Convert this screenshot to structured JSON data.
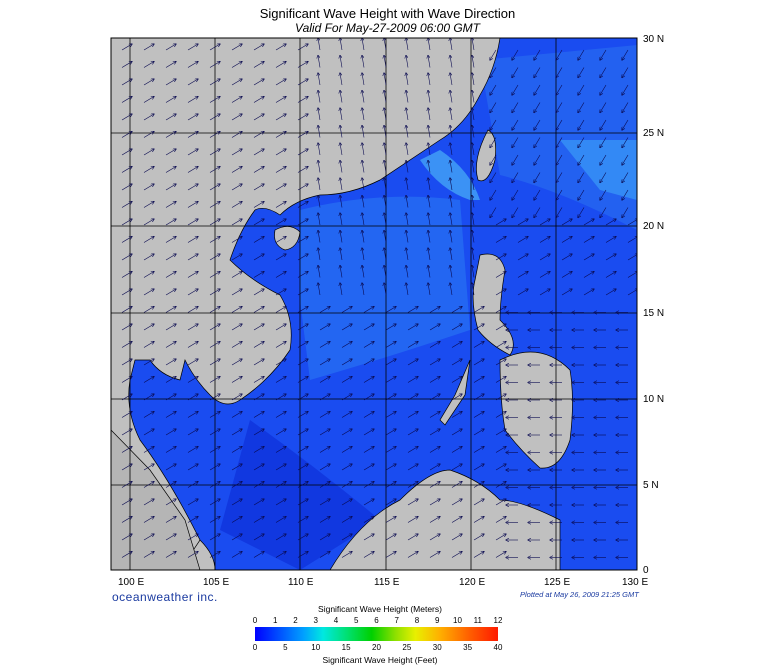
{
  "title": "Significant Wave Height with Wave Direction",
  "subtitle": "Valid For May-27-2009 06:00 GMT",
  "brand": "oceanweather inc.",
  "plotted": "Plotted at May 26, 2009 21:25 GMT",
  "map": {
    "lon_range": [
      99,
      130
    ],
    "lat_range": [
      0,
      30
    ],
    "lon_labels": [
      "100 E",
      "105 E",
      "110 E",
      "115 E",
      "120 E",
      "125 E",
      "130 E"
    ],
    "lat_labels": [
      "0",
      "5 N",
      "10 N",
      "15 N",
      "20 N",
      "25 N",
      "30 N"
    ],
    "land_color": "#c0c0c0",
    "ocean_color": "#1a4cf0"
  },
  "legend": {
    "meters_title": "Significant Wave Height (Meters)",
    "feet_title": "Significant Wave Height (Feet)",
    "meters_ticks": [
      "0",
      "1",
      "2",
      "3",
      "4",
      "5",
      "6",
      "7",
      "8",
      "9",
      "10",
      "11",
      "12"
    ],
    "feet_ticks": [
      "0",
      "5",
      "10",
      "15",
      "20",
      "25",
      "30",
      "35",
      "40"
    ]
  }
}
